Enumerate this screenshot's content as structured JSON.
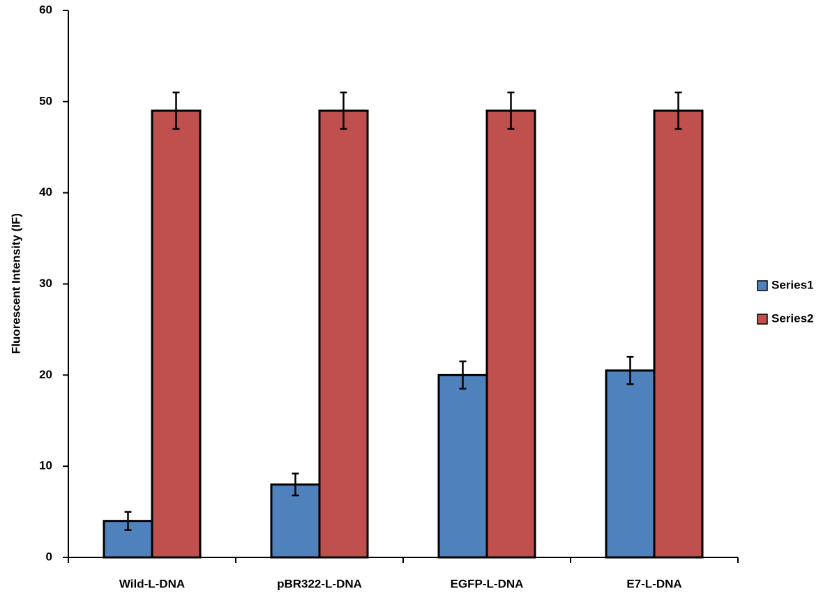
{
  "chart_data": {
    "type": "bar",
    "y_label": "Fluorescent Intensity (IF)",
    "categories": [
      "Wild-L-DNA",
      "pBR322-L-DNA",
      "EGFP-L-DNA",
      "E7-L-DNA"
    ],
    "series": [
      {
        "name": "Series1",
        "color": "#4f81bd",
        "values": [
          4,
          8,
          20,
          20.5
        ],
        "errors": [
          1,
          1.2,
          1.5,
          1.5
        ]
      },
      {
        "name": "Series2",
        "color": "#c0504d",
        "values": [
          49,
          49,
          49,
          49
        ],
        "errors": [
          2,
          2,
          2,
          2
        ]
      }
    ],
    "ylim": [
      0,
      60
    ],
    "yticks": [
      0,
      10,
      20,
      30,
      40,
      50,
      60
    ],
    "grid": false,
    "legend": "right"
  }
}
